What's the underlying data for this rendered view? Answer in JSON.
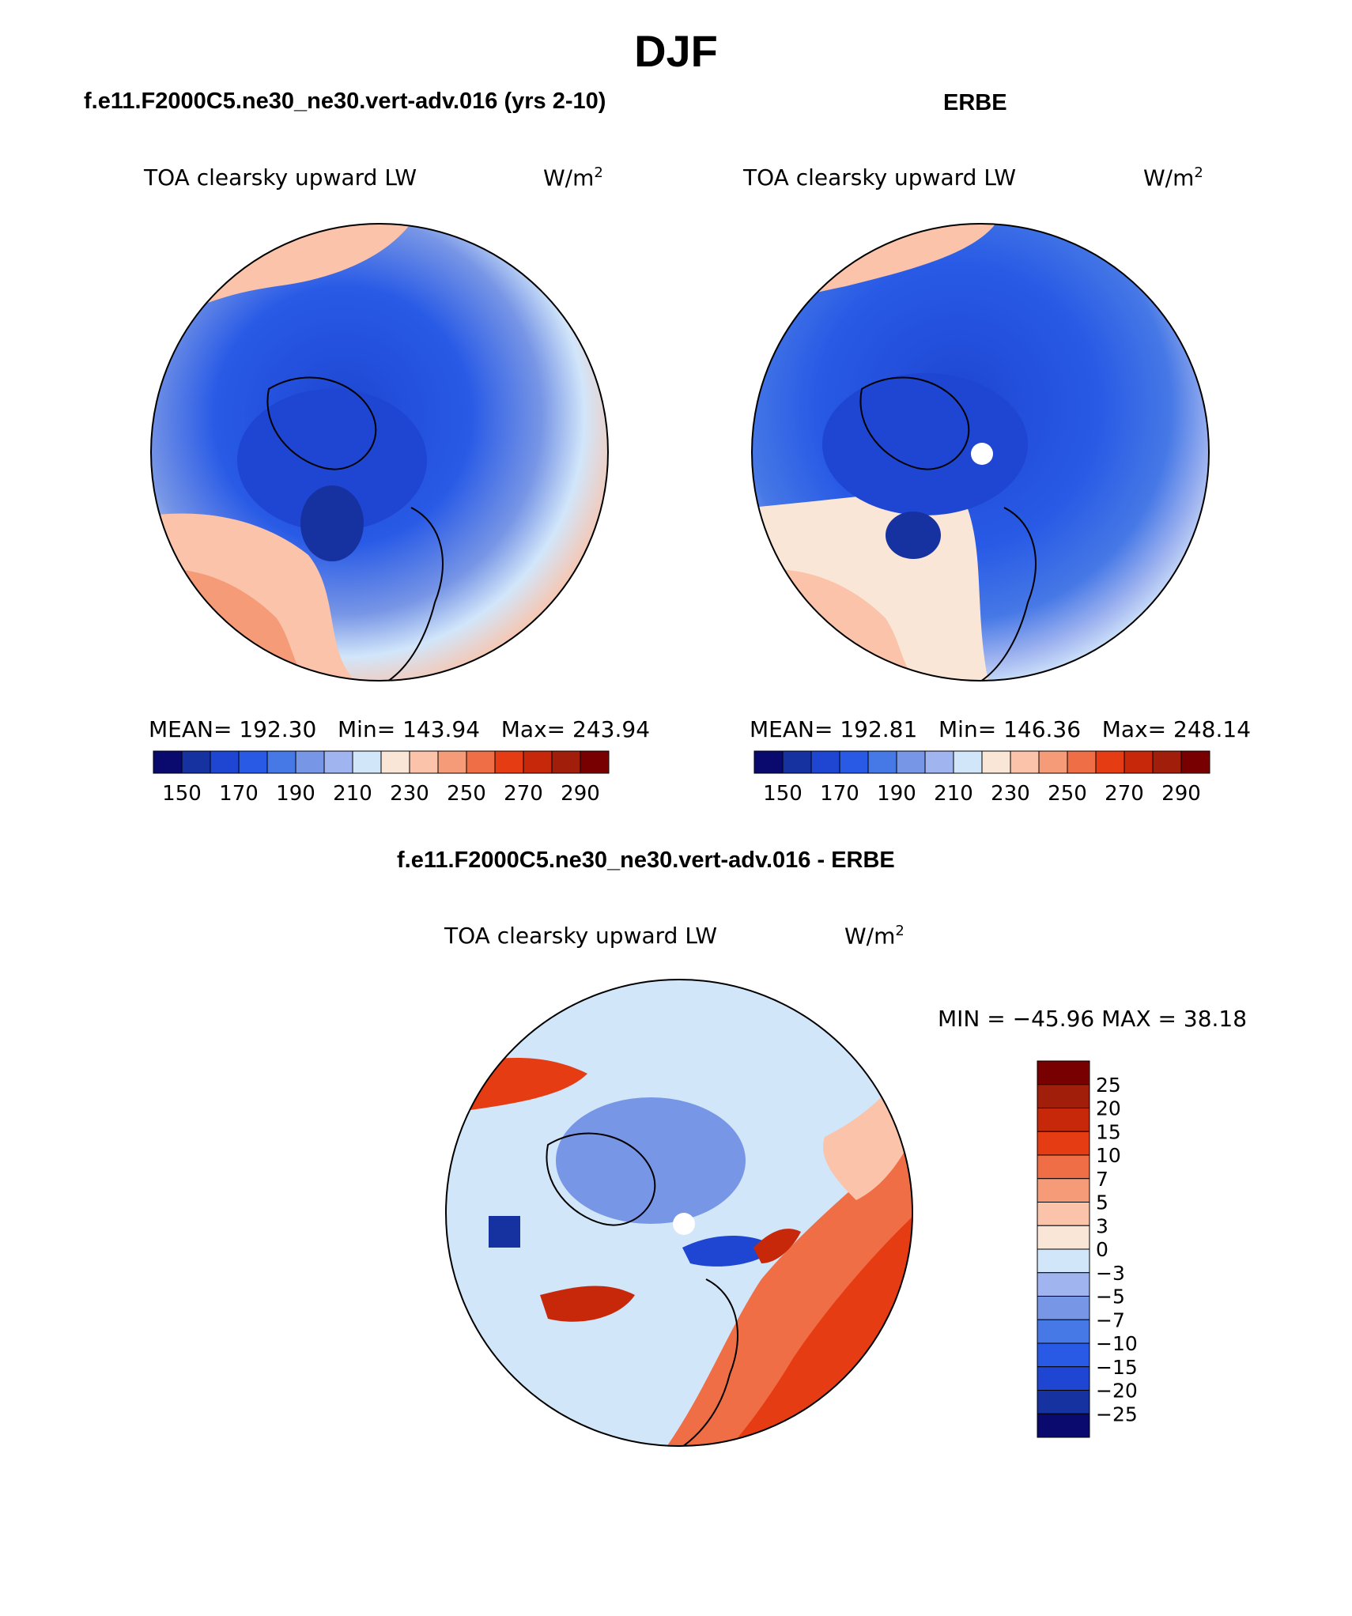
{
  "header": {
    "title": "DJF"
  },
  "panels": [
    {
      "case_title": "f.e11.F2000C5.ne30_ne30.vert-adv.016 (yrs 2-10)",
      "variable": "TOA clearsky upward LW",
      "units_base": "W/m",
      "units_exp": "2",
      "stats": {
        "mean_label": "MEAN=",
        "mean": "192.30",
        "min_label": "Min=",
        "min": "143.94",
        "max_label": "Max=",
        "max": "243.94"
      }
    },
    {
      "case_title": "ERBE",
      "variable": "TOA clearsky upward LW",
      "units_base": "W/m",
      "units_exp": "2",
      "stats": {
        "mean_label": "MEAN=",
        "mean": "192.81",
        "min_label": "Min=",
        "min": "146.36",
        "max_label": "Max=",
        "max": "248.14"
      }
    }
  ],
  "diff": {
    "case_title": "f.e11.F2000C5.ne30_ne30.vert-adv.016 - ERBE",
    "variable": "TOA clearsky upward LW",
    "units_base": "W/m",
    "units_exp": "2",
    "minmax": "MIN = −45.96 MAX =   38.18"
  },
  "chart_data": [
    {
      "type": "heatmap",
      "projection": "north-polar-stereographic",
      "title": "TOA clearsky upward LW",
      "units": "W/m2",
      "subtitle": "f.e11.F2000C5.ne30_ne30.vert-adv.016 (yrs 2-10)",
      "mean": 192.3,
      "min": 143.94,
      "max": 243.94,
      "colorbar_levels": [
        150,
        160,
        170,
        180,
        190,
        200,
        210,
        220,
        230,
        240,
        250,
        260,
        270,
        280,
        290
      ],
      "colorbar_tick_labels": [
        "150",
        "170",
        "190",
        "210",
        "230",
        "250",
        "270",
        "290"
      ],
      "colorbar_colors": [
        "#0a0a6e",
        "#1632a0",
        "#1e46d2",
        "#285ae6",
        "#4678e6",
        "#7896e6",
        "#a0b4f0",
        "#d2e6fa",
        "#fae6d7",
        "#fac3aa",
        "#f59b78",
        "#f06e46",
        "#e63c14",
        "#c8280a",
        "#a01e0a",
        "#780000"
      ]
    },
    {
      "type": "heatmap",
      "projection": "north-polar-stereographic",
      "title": "TOA clearsky upward LW",
      "units": "W/m2",
      "subtitle": "ERBE",
      "mean": 192.81,
      "min": 146.36,
      "max": 248.14,
      "colorbar_levels": [
        150,
        160,
        170,
        180,
        190,
        200,
        210,
        220,
        230,
        240,
        250,
        260,
        270,
        280,
        290
      ],
      "colorbar_tick_labels": [
        "150",
        "170",
        "190",
        "210",
        "230",
        "250",
        "270",
        "290"
      ],
      "colorbar_colors": [
        "#0a0a6e",
        "#1632a0",
        "#1e46d2",
        "#285ae6",
        "#4678e6",
        "#7896e6",
        "#a0b4f0",
        "#d2e6fa",
        "#fae6d7",
        "#fac3aa",
        "#f59b78",
        "#f06e46",
        "#e63c14",
        "#c8280a",
        "#a01e0a",
        "#780000"
      ]
    },
    {
      "type": "heatmap",
      "projection": "north-polar-stereographic",
      "title": "TOA clearsky upward LW",
      "units": "W/m2",
      "subtitle": "f.e11.F2000C5.ne30_ne30.vert-adv.016 - ERBE",
      "min": -45.96,
      "max": 38.18,
      "colorbar_levels": [
        25,
        20,
        15,
        10,
        7,
        5,
        3,
        0,
        -3,
        -5,
        -7,
        -10,
        -15,
        -20,
        -25
      ],
      "colorbar_tick_labels": [
        "25",
        "20",
        "15",
        "10",
        "7",
        "5",
        "3",
        "0",
        "−3",
        "−5",
        "−7",
        "−10",
        "−15",
        "−20",
        "−25"
      ],
      "colorbar_colors": [
        "#780000",
        "#a01e0a",
        "#c8280a",
        "#e63c14",
        "#f06e46",
        "#f59b78",
        "#fac3aa",
        "#fae6d7",
        "#d2e6fa",
        "#a0b4f0",
        "#7896e6",
        "#4678e6",
        "#285ae6",
        "#1e46d2",
        "#1632a0",
        "#0a0a6e"
      ]
    }
  ]
}
